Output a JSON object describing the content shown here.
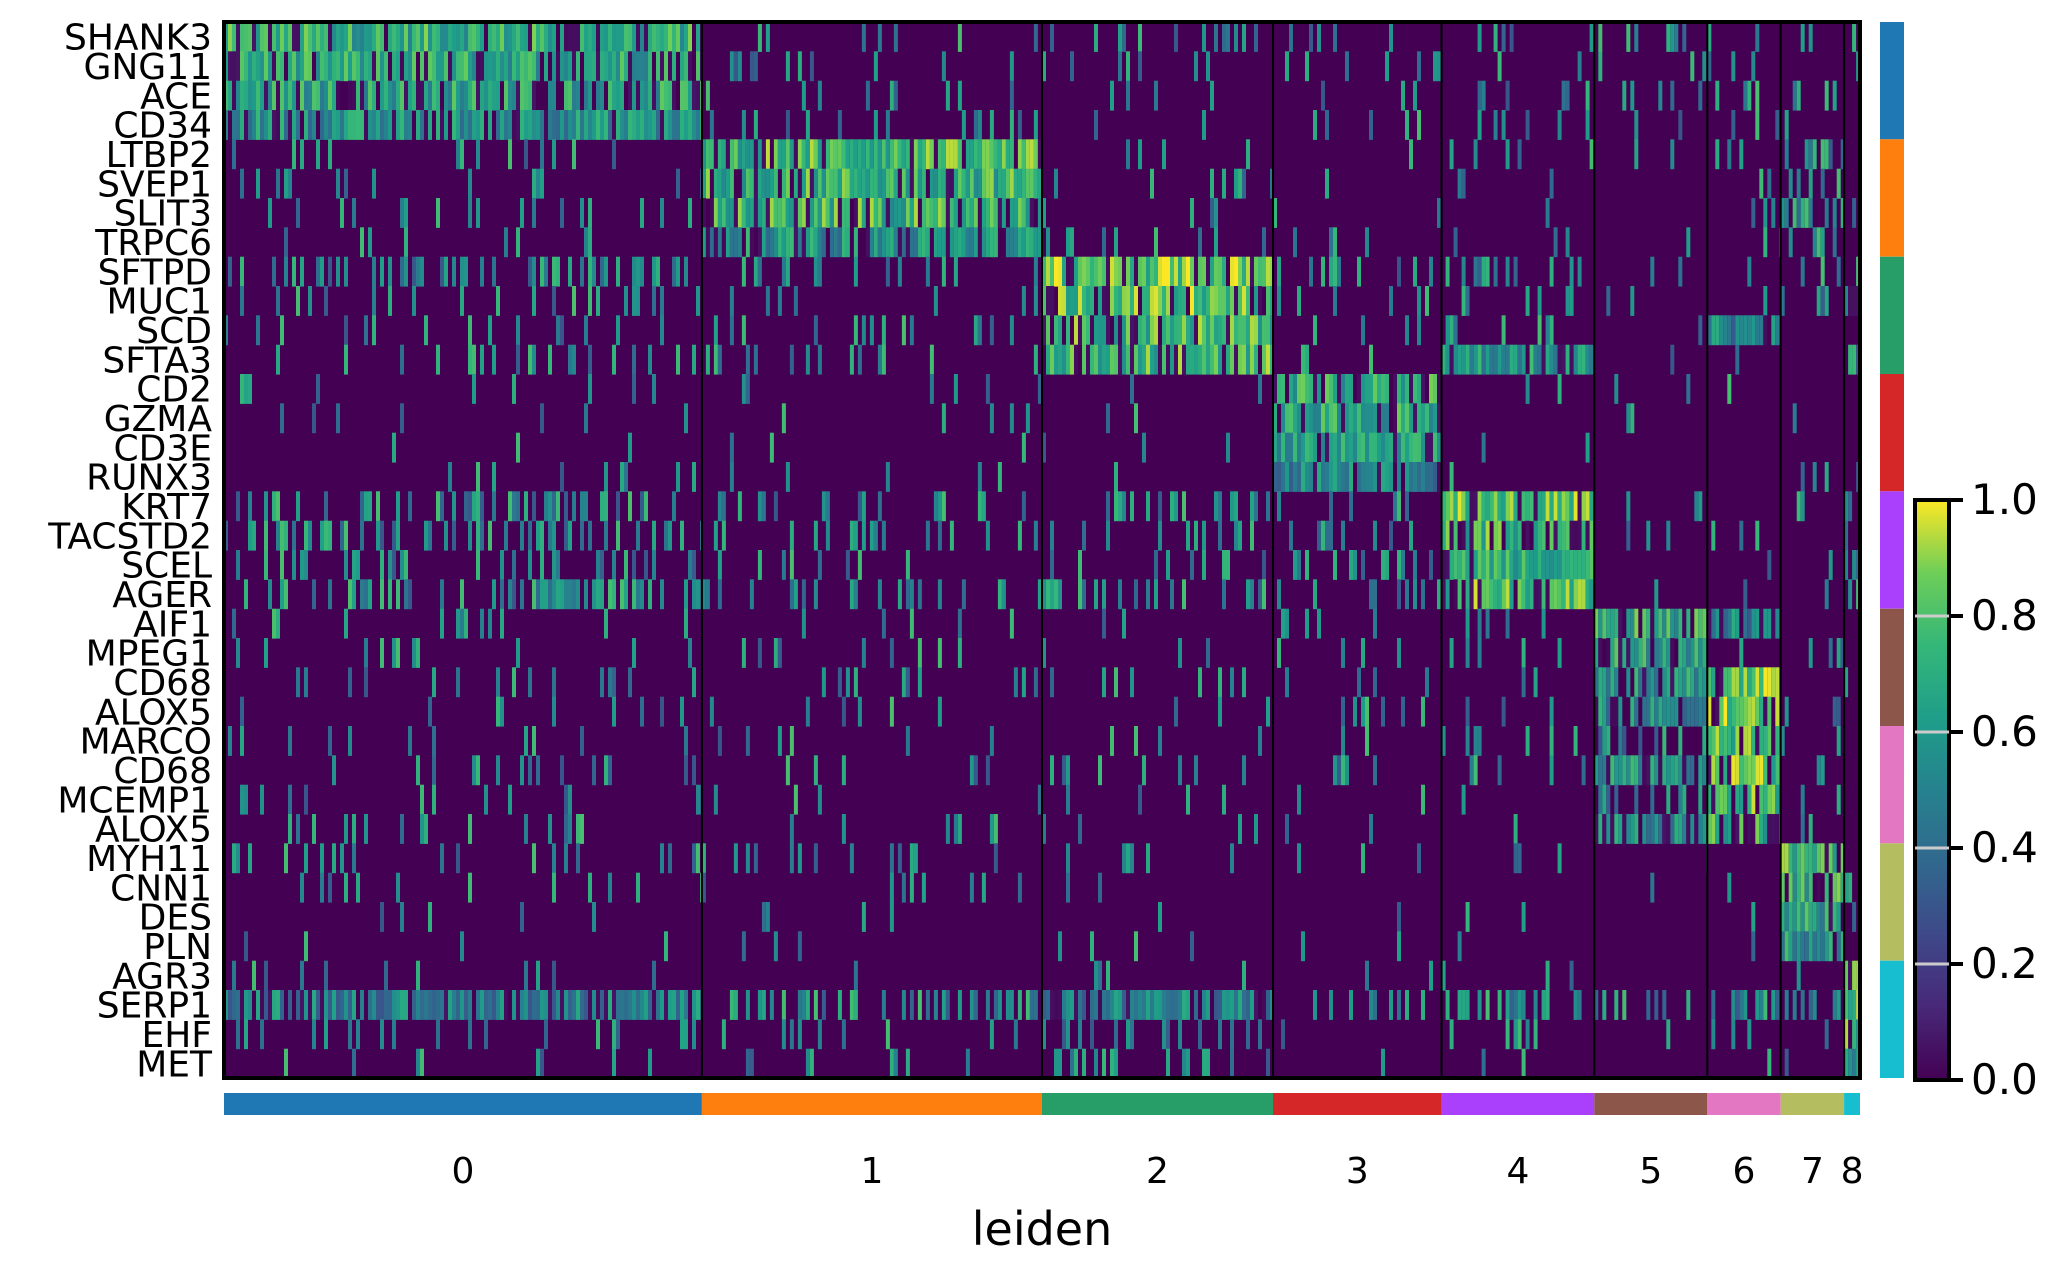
{
  "chart_data": {
    "type": "heatmap",
    "genes": [
      "SHANK3",
      "GNG11",
      "ACE",
      "CD34",
      "LTBP2",
      "SVEP1",
      "SLIT3",
      "TRPC6",
      "SFTPD",
      "MUC1",
      "SCD",
      "SFTA3",
      "CD2",
      "GZMA",
      "CD3E",
      "RUNX3",
      "KRT7",
      "TACSTD2",
      "SCEL",
      "AGER",
      "AIF1",
      "MPEG1",
      "CD68",
      "ALOX5",
      "MARCO",
      "CD68",
      "MCEMP1",
      "ALOX5",
      "MYH11",
      "CNN1",
      "DES",
      "PLN",
      "AGR3",
      "SERP1",
      "EHF",
      "MET"
    ],
    "groups": [
      "0",
      "1",
      "2",
      "3",
      "4",
      "5",
      "6",
      "7",
      "8"
    ],
    "group_colors": [
      "#1f77b4",
      "#ff7f0e",
      "#279e68",
      "#d62728",
      "#aa40fc",
      "#8c564b",
      "#e377c2",
      "#b5bd61",
      "#17becf"
    ],
    "group_widths": [
      482,
      343,
      233,
      170,
      154,
      114,
      74,
      64,
      16
    ],
    "xlabel": "leiden",
    "colormap": "viridis",
    "colorbar": {
      "ticks": [
        "0.0",
        "0.2",
        "0.4",
        "0.6",
        "0.8",
        "1.0"
      ],
      "range": [
        0,
        1
      ]
    },
    "mean_expression": [
      [
        0.75,
        0.12,
        0.15,
        0.1,
        0.2,
        0.1,
        0.1,
        0.15,
        0.15
      ],
      [
        0.72,
        0.15,
        0.12,
        0.1,
        0.15,
        0.1,
        0.1,
        0.1,
        0.1
      ],
      [
        0.7,
        0.12,
        0.1,
        0.1,
        0.15,
        0.1,
        0.35,
        0.15,
        0.1
      ],
      [
        0.62,
        0.15,
        0.1,
        0.1,
        0.15,
        0.08,
        0.1,
        0.1,
        0.08
      ],
      [
        0.12,
        0.8,
        0.1,
        0.05,
        0.15,
        0.05,
        0.1,
        0.4,
        0.1
      ],
      [
        0.15,
        0.78,
        0.1,
        0.05,
        0.12,
        0.05,
        0.1,
        0.4,
        0.08
      ],
      [
        0.18,
        0.78,
        0.1,
        0.05,
        0.12,
        0.05,
        0.1,
        0.5,
        0.08
      ],
      [
        0.1,
        0.62,
        0.1,
        0.05,
        0.1,
        0.05,
        0.08,
        0.2,
        0.08
      ],
      [
        0.35,
        0.15,
        0.88,
        0.1,
        0.4,
        0.1,
        0.1,
        0.1,
        0.3
      ],
      [
        0.2,
        0.1,
        0.85,
        0.05,
        0.2,
        0.05,
        0.1,
        0.1,
        0.6
      ],
      [
        0.15,
        0.1,
        0.8,
        0.05,
        0.2,
        0.1,
        0.55,
        0.1,
        0.3
      ],
      [
        0.2,
        0.1,
        0.8,
        0.05,
        0.65,
        0.05,
        0.1,
        0.1,
        0.5
      ],
      [
        0.1,
        0.05,
        0.05,
        0.75,
        0.05,
        0.05,
        0.05,
        0.05,
        0.05
      ],
      [
        0.1,
        0.05,
        0.05,
        0.72,
        0.05,
        0.05,
        0.05,
        0.05,
        0.05
      ],
      [
        0.05,
        0.05,
        0.05,
        0.7,
        0.05,
        0.05,
        0.05,
        0.05,
        0.05
      ],
      [
        0.05,
        0.05,
        0.05,
        0.55,
        0.05,
        0.05,
        0.05,
        0.05,
        0.05
      ],
      [
        0.4,
        0.15,
        0.25,
        0.2,
        0.85,
        0.1,
        0.1,
        0.15,
        0.3
      ],
      [
        0.35,
        0.15,
        0.25,
        0.2,
        0.8,
        0.1,
        0.15,
        0.15,
        0.3
      ],
      [
        0.3,
        0.1,
        0.2,
        0.15,
        0.78,
        0.08,
        0.1,
        0.1,
        0.25
      ],
      [
        0.45,
        0.2,
        0.3,
        0.2,
        0.85,
        0.1,
        0.15,
        0.1,
        0.3
      ],
      [
        0.1,
        0.1,
        0.1,
        0.1,
        0.1,
        0.75,
        0.55,
        0.1,
        0.1
      ],
      [
        0.1,
        0.1,
        0.1,
        0.1,
        0.1,
        0.7,
        0.1,
        0.1,
        0.1
      ],
      [
        0.15,
        0.1,
        0.1,
        0.1,
        0.1,
        0.65,
        0.85,
        0.1,
        0.1
      ],
      [
        0.1,
        0.1,
        0.1,
        0.1,
        0.1,
        0.6,
        0.85,
        0.1,
        0.1
      ],
      [
        0.1,
        0.1,
        0.1,
        0.1,
        0.1,
        0.4,
        0.85,
        0.1,
        0.1
      ],
      [
        0.15,
        0.1,
        0.1,
        0.1,
        0.1,
        0.65,
        0.85,
        0.1,
        0.1
      ],
      [
        0.1,
        0.05,
        0.05,
        0.05,
        0.05,
        0.3,
        0.85,
        0.05,
        0.05
      ],
      [
        0.1,
        0.1,
        0.05,
        0.05,
        0.05,
        0.6,
        0.8,
        0.05,
        0.05
      ],
      [
        0.15,
        0.15,
        0.1,
        0.1,
        0.1,
        0.05,
        0.05,
        0.8,
        0.1
      ],
      [
        0.1,
        0.1,
        0.05,
        0.05,
        0.05,
        0.05,
        0.05,
        0.75,
        0.05
      ],
      [
        0.05,
        0.05,
        0.05,
        0.05,
        0.05,
        0.05,
        0.05,
        0.7,
        0.05
      ],
      [
        0.05,
        0.05,
        0.05,
        0.05,
        0.05,
        0.05,
        0.05,
        0.65,
        0.05
      ],
      [
        0.1,
        0.05,
        0.1,
        0.05,
        0.1,
        0.05,
        0.05,
        0.05,
        0.8
      ],
      [
        0.55,
        0.45,
        0.55,
        0.35,
        0.45,
        0.3,
        0.45,
        0.25,
        0.85
      ],
      [
        0.15,
        0.1,
        0.3,
        0.05,
        0.15,
        0.05,
        0.05,
        0.05,
        0.8
      ],
      [
        0.1,
        0.1,
        0.35,
        0.05,
        0.15,
        0.05,
        0.05,
        0.05,
        0.6
      ]
    ]
  }
}
